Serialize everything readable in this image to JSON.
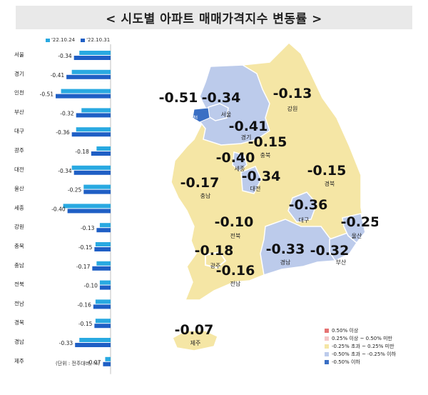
{
  "title": "< 시도별 아파트 매매가격지수 변동률 >",
  "legend": [
    {
      "label": "'22.10.24",
      "color": "#29a9e1"
    },
    {
      "label": "'22.10.31",
      "color": "#1f5fc5"
    }
  ],
  "unit_note": "(단위 : 전주대비, %)",
  "chart_data": {
    "type": "bar",
    "orientation": "horizontal",
    "categories": [
      "서울",
      "경기",
      "인천",
      "부산",
      "대구",
      "광주",
      "대전",
      "울산",
      "세종",
      "강원",
      "충북",
      "충남",
      "전북",
      "전남",
      "경북",
      "경남",
      "제주"
    ],
    "series": [
      {
        "name": "'22.10.24",
        "values": [
          -0.29,
          -0.36,
          -0.46,
          -0.27,
          -0.32,
          -0.13,
          -0.36,
          -0.25,
          -0.44,
          -0.1,
          -0.14,
          -0.13,
          -0.1,
          -0.14,
          -0.14,
          -0.29,
          -0.05
        ]
      },
      {
        "name": "'22.10.31",
        "values": [
          -0.34,
          -0.41,
          -0.51,
          -0.32,
          -0.36,
          -0.18,
          -0.34,
          -0.25,
          -0.4,
          -0.13,
          -0.15,
          -0.17,
          -0.1,
          -0.16,
          -0.15,
          -0.33,
          -0.07
        ]
      }
    ],
    "labels": [
      "-0.34",
      "-0.41",
      "-0.51",
      "-0.32",
      "-0.36",
      "-0.18",
      "-0.34",
      "-0.25",
      "-0.40",
      "-0.13",
      "-0.15",
      "-0.17",
      "-0.10",
      "-0.16",
      "-0.15",
      "-0.33",
      "-0.07"
    ],
    "xlim": [
      -0.55,
      0
    ]
  },
  "map": {
    "regions": [
      {
        "name": "인천",
        "value": "-0.51",
        "color": "#3a6fc4"
      },
      {
        "name": "서울",
        "value": "-0.34",
        "color": "#bccbeb"
      },
      {
        "name": "경기",
        "value": "-0.41",
        "color": "#bccbeb"
      },
      {
        "name": "강원",
        "value": "-0.13",
        "color": "#f5e6a5"
      },
      {
        "name": "충북",
        "value": "-0.15",
        "color": "#f5e6a5"
      },
      {
        "name": "세종",
        "value": "-0.40",
        "color": "#bccbeb"
      },
      {
        "name": "대전",
        "value": "-0.34",
        "color": "#bccbeb"
      },
      {
        "name": "충남",
        "value": "-0.17",
        "color": "#f5e6a5"
      },
      {
        "name": "경북",
        "value": "-0.15",
        "color": "#f5e6a5"
      },
      {
        "name": "대구",
        "value": "-0.36",
        "color": "#bccbeb"
      },
      {
        "name": "울산",
        "value": "-0.25",
        "color": "#f5e6a5"
      },
      {
        "name": "전북",
        "value": "-0.10",
        "color": "#f5e6a5"
      },
      {
        "name": "광주",
        "value": "-0.18",
        "color": "#f5e6a5"
      },
      {
        "name": "경남",
        "value": "-0.33",
        "color": "#bccbeb"
      },
      {
        "name": "부산",
        "value": "-0.32",
        "color": "#bccbeb"
      },
      {
        "name": "전남",
        "value": "-0.16",
        "color": "#f5e6a5"
      },
      {
        "name": "제주",
        "value": "-0.07",
        "color": "#f5e6a5"
      }
    ],
    "legend": [
      {
        "label": "0.50% 이상",
        "color": "#e57373"
      },
      {
        "label": "0.25% 이상 ~ 0.50% 미만",
        "color": "#f4c7c7"
      },
      {
        "label": "-0.25% 초과 ~ 0.25% 미만",
        "color": "#f5e6a5"
      },
      {
        "label": "-0.50% 초과 ~ -0.25% 이하",
        "color": "#bccbeb"
      },
      {
        "label": "-0.50% 이하",
        "color": "#3a6fc4"
      }
    ]
  }
}
